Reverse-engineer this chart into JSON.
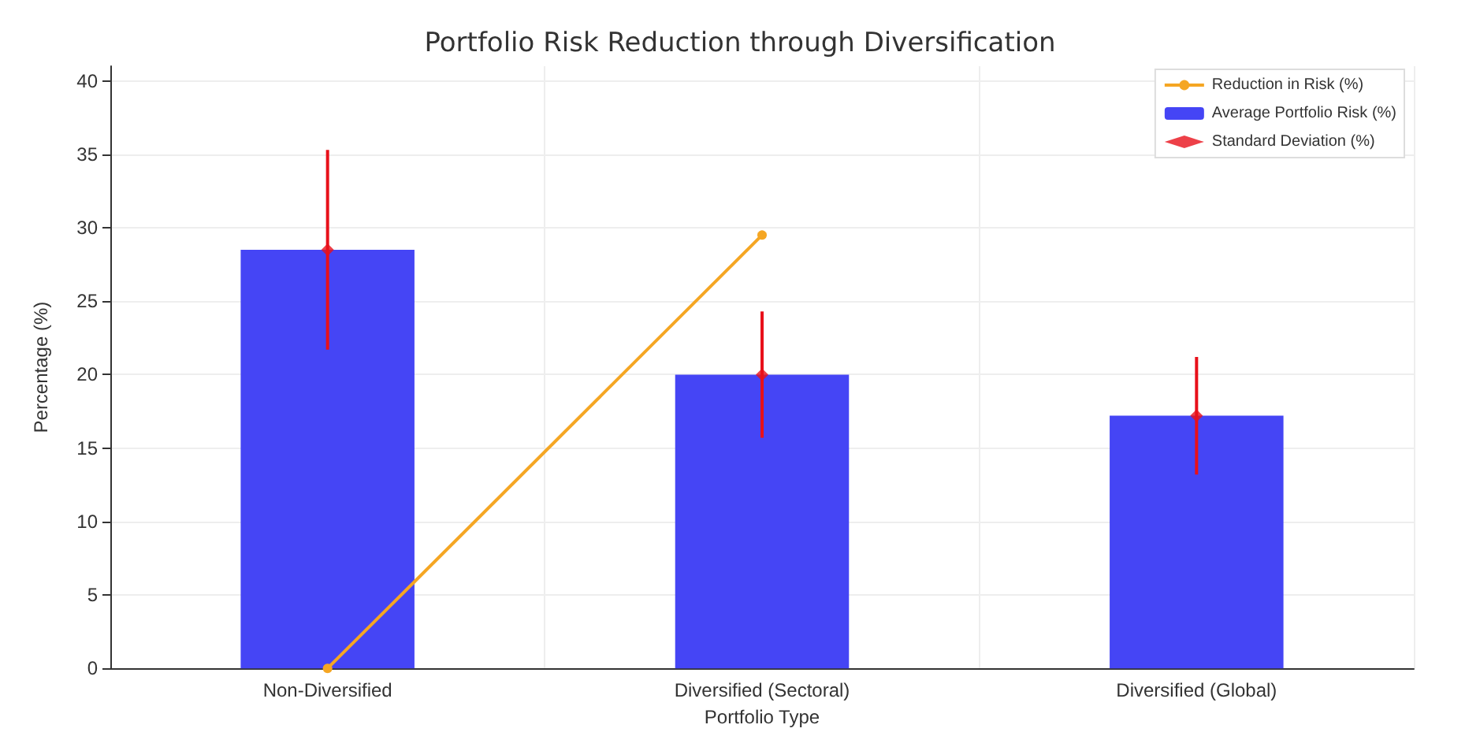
{
  "chart_data": {
    "type": "bar",
    "title": "Portfolio Risk Reduction through Diversification",
    "xlabel": "Portfolio Type",
    "ylabel": "Percentage (%)",
    "categories": [
      "Non-Diversified",
      "Diversified (Sectoral)",
      "Diversified (Global)"
    ],
    "series": [
      {
        "name": "Reduction in Risk (%)",
        "type": "line",
        "color": "#f5a623",
        "marker": "circle",
        "values": [
          0,
          29.5,
          null
        ]
      },
      {
        "name": "Average Portfolio Risk (%)",
        "color": "#4545f5",
        "values": [
          28.5,
          20,
          17.2
        ]
      },
      {
        "name": "Standard Deviation (%)",
        "type": "scatter",
        "color": "#e8101a",
        "marker": "diamond",
        "values": [
          28.5,
          20,
          17.2
        ],
        "errors": [
          6.8,
          4.3,
          4
        ]
      }
    ],
    "ylim": [
      0,
      41
    ],
    "yticks": [
      0,
      5,
      10,
      15,
      20,
      25,
      30,
      35,
      40
    ],
    "grid": true,
    "legend": "top right"
  }
}
